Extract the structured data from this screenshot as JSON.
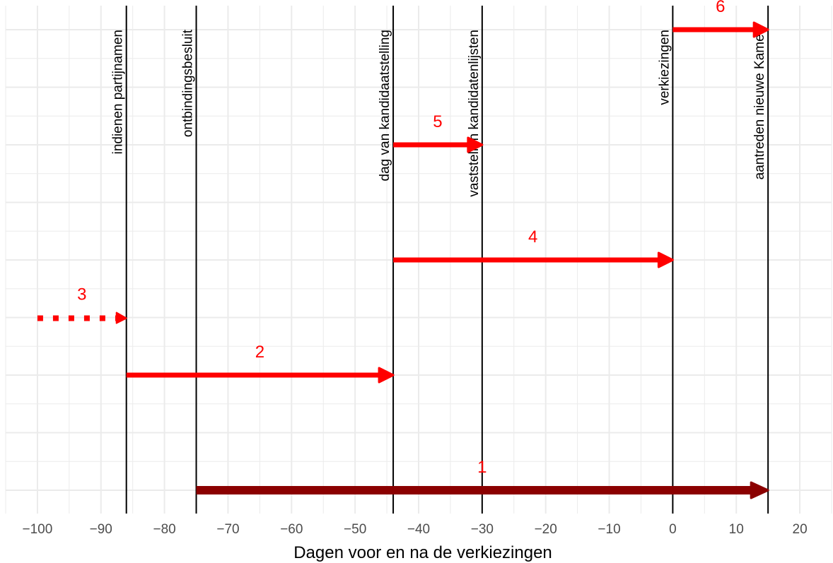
{
  "chart_data": {
    "type": "timeline",
    "title": "",
    "xlabel": "Dagen voor en na de verkiezingen",
    "ylabel": "",
    "xlim": [
      -105,
      25
    ],
    "ylim": [
      0.6,
      8.6
    ],
    "x_ticks": [
      -100,
      -90,
      -80,
      -70,
      -60,
      -50,
      -40,
      -30,
      -20,
      -10,
      0,
      10,
      20
    ],
    "x_tick_labels": [
      "−100",
      "−90",
      "−80",
      "−70",
      "−60",
      "−50",
      "−40",
      "−30",
      "−20",
      "−10",
      "0",
      "10",
      "20"
    ],
    "grid": true,
    "events": [
      {
        "label": "indienen partijnamen",
        "x": -86
      },
      {
        "label": "ontbindingsbesluit",
        "x": -75
      },
      {
        "label": "dag van kandidaatstelling",
        "x": -44
      },
      {
        "label": "vaststellen kandidatenlijsten",
        "x": -30
      },
      {
        "label": "verkiezingen",
        "x": 0
      },
      {
        "label": "aantreden nieuwe Kamer",
        "x": 15
      }
    ],
    "arrows": [
      {
        "label": "1",
        "start": -75,
        "end": 15,
        "y": 1,
        "color": "#8b0000",
        "style": "solid",
        "weight": "thick"
      },
      {
        "label": "2",
        "start": -86,
        "end": -44,
        "y": 3,
        "color": "#ff0000",
        "style": "solid",
        "weight": "normal"
      },
      {
        "label": "3",
        "start": -100,
        "end": -86,
        "y": 4,
        "color": "#ff0000",
        "style": "dotted",
        "weight": "normal"
      },
      {
        "label": "4",
        "start": -44,
        "end": 0,
        "y": 5,
        "color": "#ff0000",
        "style": "solid",
        "weight": "normal"
      },
      {
        "label": "5",
        "start": -44,
        "end": -30,
        "y": 7,
        "color": "#ff0000",
        "style": "solid",
        "weight": "normal"
      },
      {
        "label": "6",
        "start": 0,
        "end": 15,
        "y": 9,
        "color": "#ff0000",
        "style": "solid",
        "weight": "normal"
      }
    ],
    "colors": {
      "event_line": "#000000",
      "grid": "#ebebeb",
      "accent": "#ff0000",
      "dark": "#8b0000"
    }
  }
}
